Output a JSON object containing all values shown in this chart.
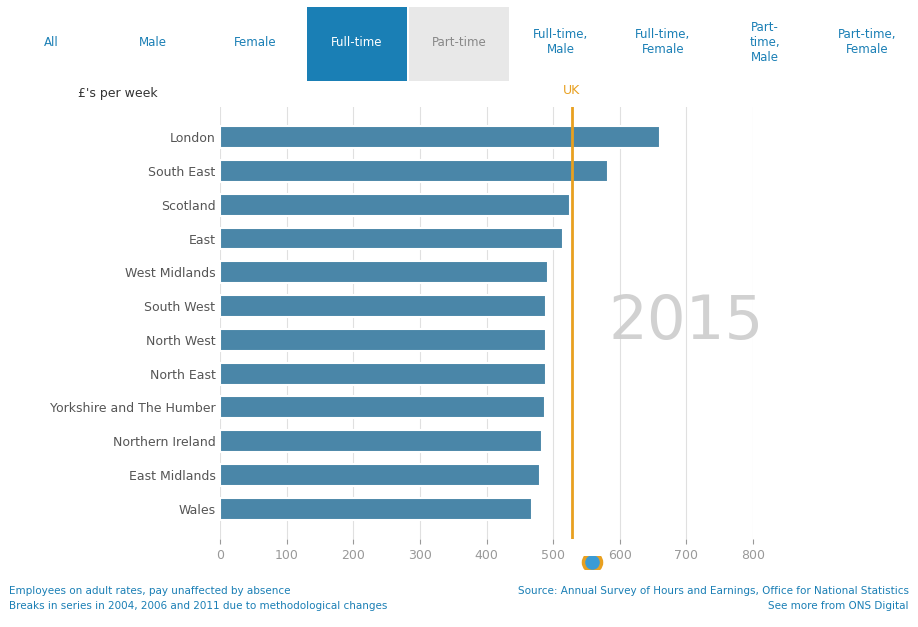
{
  "regions": [
    "London",
    "South East",
    "Scotland",
    "East",
    "West Midlands",
    "South West",
    "North West",
    "North East",
    "Yorkshire and The Humber",
    "Northern Ireland",
    "East Midlands",
    "Wales"
  ],
  "values": [
    660,
    582,
    525,
    515,
    492,
    490,
    490,
    490,
    488,
    483,
    480,
    468
  ],
  "bar_color": "#4a86a8",
  "uk_line_value": 528,
  "uk_label": "UK",
  "year_label": "2015",
  "year_color": "#cccccc",
  "line_color": "#e8a020",
  "xlim": [
    0,
    800
  ],
  "xticks": [
    0,
    100,
    200,
    300,
    400,
    500,
    600,
    700,
    800
  ],
  "ylabel_text": "£'s per week",
  "bg_color": "#ffffff",
  "plot_bg": "#ffffff",
  "tab_labels": [
    "All",
    "Male",
    "Female",
    "Full-time",
    "Part-time",
    "Full-time,\nMale",
    "Full-time,\nFemale",
    "Part-\ntime,\nMale",
    "Part-time,\nFemale"
  ],
  "active_tab": 3,
  "active_tab_color": "#1a7fb5",
  "active_tab_text": "#ffffff",
  "partime_tab_color": "#e8e8e8",
  "partime_tab_text": "#888888",
  "inactive_tab_text": "#1a7fb5",
  "footer_left_1": "Employees on adult rates, pay unaffected by absence",
  "footer_left_2": "Breaks in series in 2004, 2006 and 2011 due to methodological changes",
  "footer_right_1": "Source: Annual Survey of Hours and Earnings, Office for National Statistics",
  "footer_right_2": "See more from ONS Digital",
  "footer_color": "#1a7fb5",
  "grid_color": "#e0e0e0",
  "tick_color": "#999999",
  "label_color": "#555555"
}
